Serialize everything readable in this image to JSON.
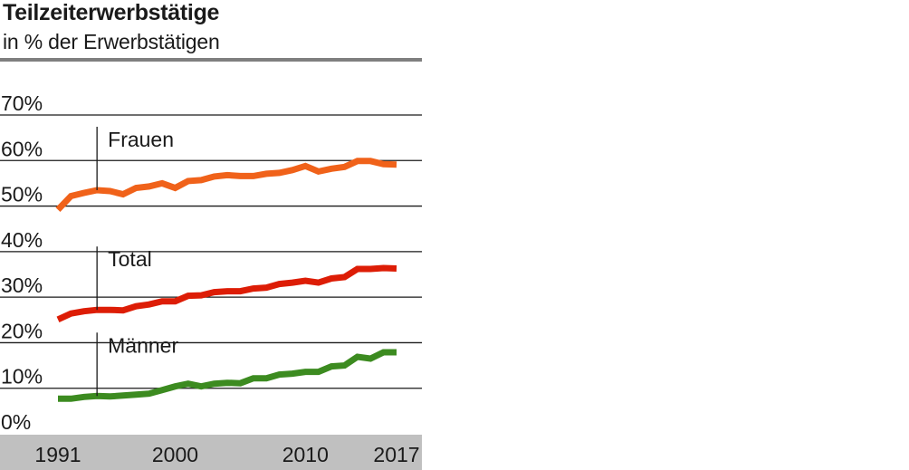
{
  "chart_data": {
    "type": "line",
    "title": "Teilzeiterwerbstätige",
    "subtitle": "in % der Erwerbstätigen",
    "xlabel": "",
    "ylabel": "",
    "ylim": [
      0,
      70
    ],
    "yticks": [
      0,
      10,
      20,
      30,
      40,
      50,
      60,
      70
    ],
    "ytick_labels": [
      "0%",
      "10%",
      "20%",
      "30%",
      "40%",
      "50%",
      "60%",
      "70%"
    ],
    "xlim": [
      1991,
      2017
    ],
    "xticks": [
      1991,
      2000,
      2010,
      2017
    ],
    "xtick_labels": [
      "1991",
      "2000",
      "2010",
      "2017"
    ],
    "grid": true,
    "legend": "inline labels",
    "x": [
      1991,
      1992,
      1993,
      1994,
      1995,
      1996,
      1997,
      1998,
      1999,
      2000,
      2001,
      2002,
      2003,
      2004,
      2005,
      2006,
      2007,
      2008,
      2009,
      2010,
      2011,
      2012,
      2013,
      2014,
      2015,
      2016,
      2017
    ],
    "series": [
      {
        "name": "Frauen",
        "color": "#f0621a",
        "label_year": 1994,
        "values": [
          49.2,
          52.2,
          52.9,
          53.5,
          53.3,
          52.6,
          54.0,
          54.3,
          55.0,
          54.0,
          55.5,
          55.7,
          56.5,
          56.8,
          56.6,
          56.6,
          57.1,
          57.3,
          57.9,
          58.8,
          57.6,
          58.2,
          58.6,
          59.9,
          59.9,
          59.2,
          59.1
        ]
      },
      {
        "name": "Total",
        "color": "#dd1d06",
        "label_year": 1994,
        "values": [
          25.1,
          26.4,
          26.9,
          27.2,
          27.2,
          27.1,
          28.0,
          28.4,
          29.1,
          29.1,
          30.3,
          30.4,
          31.1,
          31.3,
          31.3,
          31.9,
          32.1,
          32.9,
          33.2,
          33.6,
          33.2,
          34.1,
          34.4,
          36.2,
          36.2,
          36.4,
          36.3
        ]
      },
      {
        "name": "Männer",
        "color": "#3c8b20",
        "label_year": 1994,
        "values": [
          7.7,
          7.7,
          8.1,
          8.3,
          8.2,
          8.4,
          8.6,
          8.8,
          9.6,
          10.4,
          11.0,
          10.4,
          11.0,
          11.2,
          11.1,
          12.2,
          12.2,
          13.0,
          13.2,
          13.6,
          13.6,
          14.8,
          15.0,
          16.9,
          16.5,
          17.9,
          17.9
        ]
      }
    ]
  }
}
